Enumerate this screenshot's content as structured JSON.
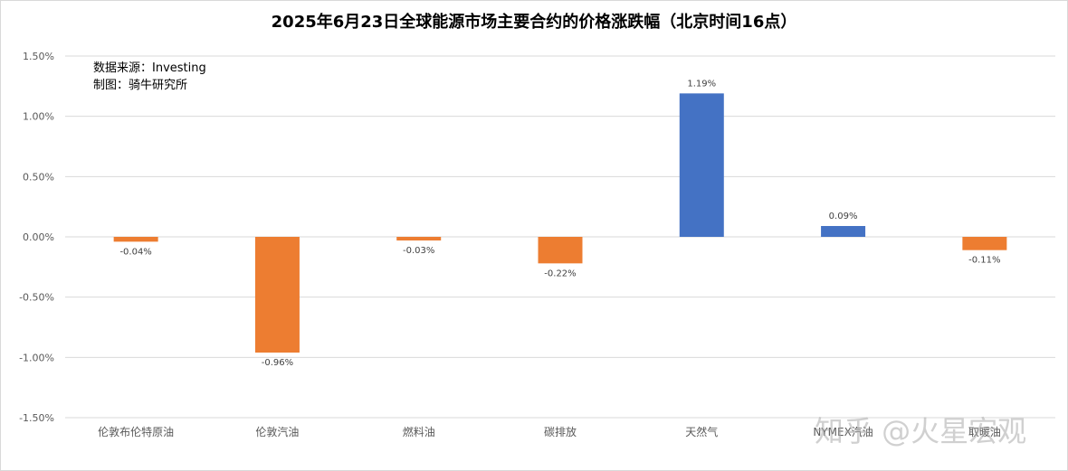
{
  "chart_data": {
    "type": "bar",
    "title": "2025年6月23日全球能源市场主要合约的价格涨跌幅（北京时间16点）",
    "notes": [
      "数据来源：Investing",
      "制图：骑牛研究所"
    ],
    "categories": [
      "伦敦布伦特原油",
      "伦敦汽油",
      "燃料油",
      "碳排放",
      "天然气",
      "NYMEX汽油",
      "取暖油"
    ],
    "values": [
      -0.04,
      -0.96,
      -0.03,
      -0.22,
      1.19,
      0.09,
      -0.11
    ],
    "value_labels": [
      "-0.04%",
      "-0.96%",
      "-0.03%",
      "-0.22%",
      "1.19%",
      "0.09%",
      "-0.11%"
    ],
    "ylim": [
      -1.5,
      1.5
    ],
    "yticks": [
      1.5,
      1.0,
      0.5,
      0.0,
      -0.5,
      -1.0,
      -1.5
    ],
    "ytick_labels": [
      "1.50%",
      "1.00%",
      "0.50%",
      "0.00%",
      "-0.50%",
      "-1.00%",
      "-1.50%"
    ],
    "colors": {
      "positive": "#4472c4",
      "negative": "#ed7d31",
      "grid": "#d9d9d9"
    },
    "grid": true,
    "legend": "none"
  },
  "watermark": "知乎 @火星宏观"
}
